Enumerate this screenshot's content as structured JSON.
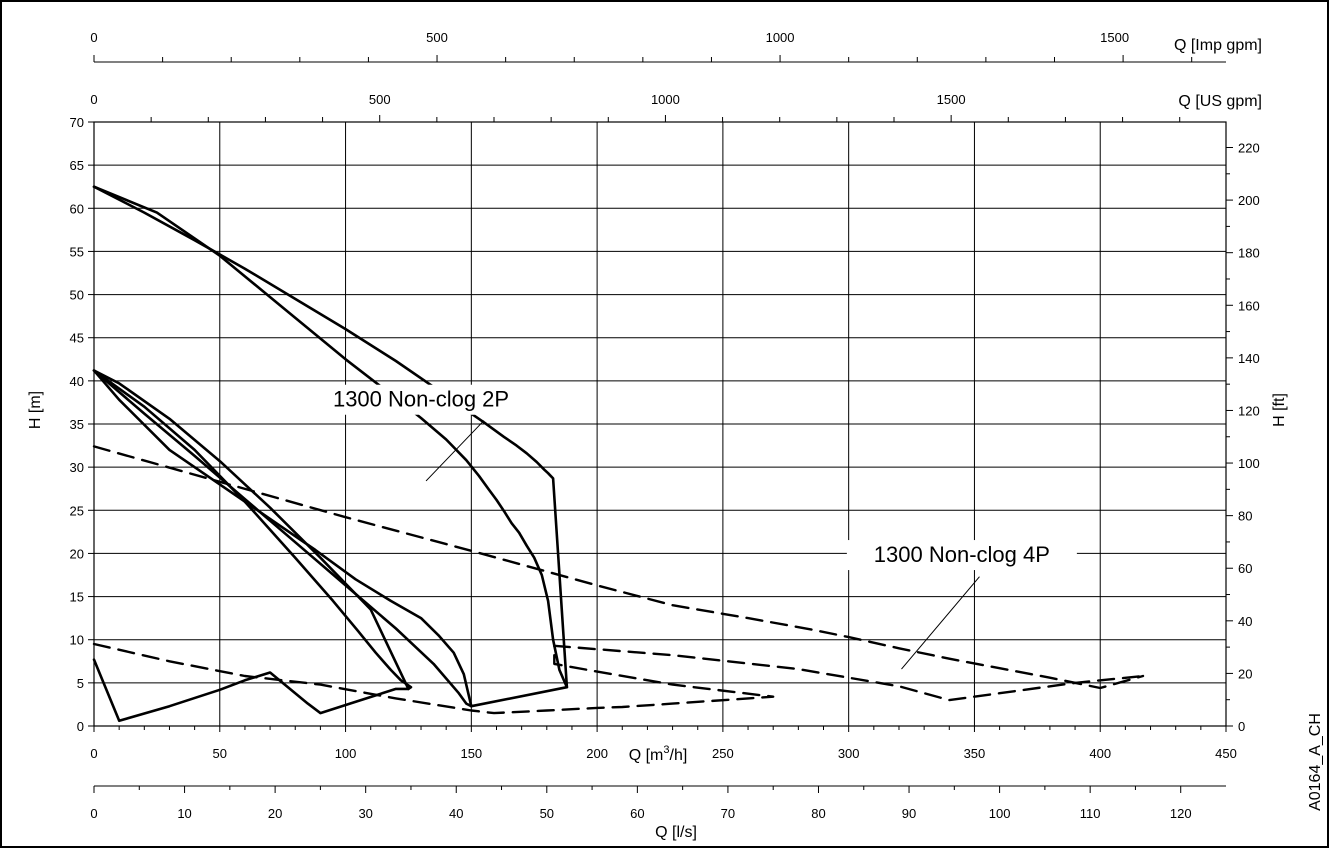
{
  "chart_data": {
    "type": "line",
    "title": "",
    "reference_code": "A0164_A_CH",
    "axes": {
      "x_primary": {
        "label": "Q [m³/h]",
        "label_base": "Q [m",
        "label_sup": "3",
        "label_tail": "/h]",
        "range": [
          0,
          450
        ],
        "ticks": [
          0,
          50,
          100,
          150,
          200,
          250,
          300,
          350,
          400,
          450
        ],
        "tick_labels": [
          "0",
          "50",
          "100",
          "150",
          "200",
          "250",
          "300",
          "350",
          "400",
          "450"
        ]
      },
      "x_ls": {
        "label": "Q [l/s]",
        "range": [
          0,
          125
        ],
        "ticks": [
          0,
          10,
          20,
          30,
          40,
          50,
          60,
          70,
          80,
          90,
          100,
          110,
          120
        ],
        "tick_labels": [
          "0",
          "10",
          "20",
          "30",
          "40",
          "50",
          "60",
          "70",
          "80",
          "90",
          "100",
          "110",
          "120"
        ]
      },
      "x_us_gpm": {
        "label": "Q [US gpm]",
        "range": [
          0,
          1981
        ],
        "ticks": [
          0,
          500,
          1000,
          1500
        ],
        "tick_labels": [
          "0",
          "500",
          "1000",
          "1500"
        ]
      },
      "x_imp_gpm": {
        "label": "Q [Imp gpm]",
        "range": [
          0,
          1650
        ],
        "ticks": [
          0,
          500,
          1000,
          1500
        ],
        "tick_labels": [
          "0",
          "500",
          "1000",
          "1500"
        ]
      },
      "y_primary": {
        "label": "H [m]",
        "range": [
          0,
          70
        ],
        "ticks": [
          0,
          5,
          10,
          15,
          20,
          25,
          30,
          35,
          40,
          45,
          50,
          55,
          60,
          65,
          70
        ],
        "tick_labels": [
          "0",
          "5",
          "10",
          "15",
          "20",
          "25",
          "30",
          "35",
          "40",
          "45",
          "50",
          "55",
          "60",
          "65",
          "70"
        ]
      },
      "y_secondary": {
        "label": "H [ft]",
        "range": [
          0,
          229.7
        ],
        "ticks": [
          0,
          20,
          40,
          60,
          80,
          100,
          120,
          140,
          160,
          180,
          200,
          220
        ],
        "tick_labels": [
          "0",
          "20",
          "40",
          "60",
          "80",
          "100",
          "120",
          "140",
          "160",
          "180",
          "200",
          "220"
        ]
      }
    },
    "grid": true,
    "legend": "none",
    "annotations": [
      {
        "text": "1300 Non-clog 2P",
        "series": "2P",
        "text_at": [
          130,
          37
        ],
        "pointer": [
          [
            155,
            35.4
          ],
          [
            132,
            28.4
          ]
        ]
      },
      {
        "text": "1300 Non-clog 4P",
        "series": "4P",
        "text_at": [
          345,
          19
        ],
        "pointer": [
          [
            352,
            17.3
          ],
          [
            321,
            6.6
          ]
        ]
      }
    ],
    "series": [
      {
        "group": "2P",
        "style": "solid",
        "x": [
          0,
          20,
          40,
          60,
          80,
          100,
          120,
          135,
          145,
          155,
          163,
          168,
          172,
          176,
          179,
          180.5,
          181.5,
          182.5,
          188,
          150,
          147,
          143,
          137,
          130,
          118,
          104,
          88,
          70,
          50,
          30,
          10,
          0,
          10,
          30,
          50,
          70,
          90,
          110,
          125,
          120,
          105,
          90,
          85,
          70,
          60,
          50,
          30,
          10,
          0
        ],
        "y": [
          62.5,
          59.5,
          56.3,
          53,
          49.5,
          46,
          42.3,
          39.3,
          37.2,
          35.2,
          33.5,
          32.5,
          31.6,
          30.6,
          29.7,
          29.3,
          29,
          28.7,
          4.5,
          2.3,
          6,
          8.5,
          10.5,
          12.5,
          14.5,
          17,
          20.4,
          24,
          28,
          32,
          37.8,
          41.2,
          39.7,
          35.6,
          30.7,
          25.3,
          19.5,
          13.5,
          4.3,
          4.3,
          2.9,
          1.5,
          2.6,
          6.2,
          5.3,
          4.2,
          2.3,
          0.6,
          7.7
        ]
      },
      {
        "group": "2P",
        "style": "solid",
        "x": [
          0,
          25,
          50,
          75,
          100,
          120,
          130,
          140,
          148,
          153,
          157,
          160,
          163,
          166,
          169,
          172,
          175,
          178,
          180.5,
          182.5,
          185,
          188
        ],
        "y": [
          62.5,
          59.5,
          54.5,
          48.5,
          42.5,
          38,
          35.7,
          33.2,
          30.8,
          29,
          27.4,
          26.2,
          24.9,
          23.5,
          22.4,
          20.9,
          19.5,
          17.5,
          14.5,
          10,
          6.5,
          4.5
        ]
      },
      {
        "group": "2P",
        "style": "solid",
        "x": [
          0,
          20,
          40,
          60,
          80,
          95,
          105,
          112,
          118,
          122,
          126,
          125
        ],
        "y": [
          41.2,
          37,
          32,
          26,
          19.5,
          14.5,
          11,
          8.5,
          6.5,
          5.3,
          4.5,
          4.3
        ]
      },
      {
        "group": "2P",
        "style": "solid",
        "x": [
          0,
          20,
          40,
          60,
          80,
          100,
          120,
          135,
          145,
          148,
          150
        ],
        "y": [
          41.2,
          36.2,
          31.3,
          26.3,
          21.3,
          16.3,
          11.3,
          7.2,
          3.8,
          2.6,
          2.3
        ]
      },
      {
        "group": "4P",
        "style": "dashed",
        "x": [
          0,
          50,
          100,
          150,
          200,
          230,
          260,
          285,
          300,
          320,
          340,
          360,
          380,
          400,
          417
        ],
        "y": [
          32.4,
          28.3,
          24.2,
          20.3,
          16.3,
          14,
          12.5,
          11.2,
          10.3,
          9,
          7.8,
          6.7,
          5.6,
          4.4,
          5.8
        ]
      },
      {
        "group": "4P",
        "style": "dashed",
        "x": [
          0,
          30,
          60,
          90,
          120,
          150,
          159,
          180,
          200,
          210,
          230,
          270,
          230,
          200,
          183,
          183,
          230,
          280,
          320,
          340,
          360,
          390,
          417
        ],
        "y": [
          9.5,
          7.5,
          5.8,
          4.8,
          3.2,
          1.8,
          1.5,
          1.8,
          2.1,
          2.2,
          2.6,
          3.4,
          4.8,
          6.3,
          7.2,
          9.3,
          8.2,
          6.6,
          4.6,
          3,
          3.8,
          5,
          5.8
        ]
      }
    ]
  }
}
